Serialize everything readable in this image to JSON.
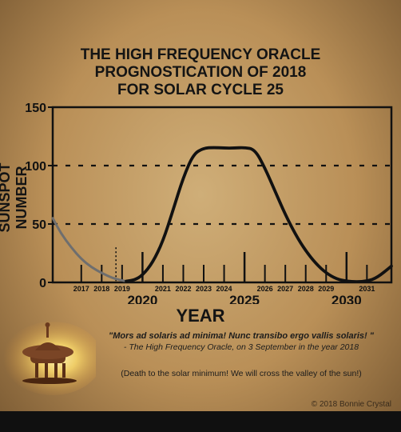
{
  "chart_data": {
    "type": "line",
    "title": [
      "THE HIGH FREQUENCY ORACLE",
      "PROGNOSTICATION OF 2018",
      "FOR SOLAR CYCLE 25"
    ],
    "xlabel": "YEAR",
    "ylabel": "SUNSPOT NUMBER",
    "xlim": [
      2015.6,
      2032.2
    ],
    "ylim": [
      0,
      150
    ],
    "y_ticks": [
      0,
      50,
      100,
      150
    ],
    "x_major_ticks": [
      2020,
      2025,
      2030
    ],
    "x_minor_ticks": [
      2017,
      2018,
      2019,
      2021,
      2022,
      2023,
      2024,
      2026,
      2027,
      2028,
      2029,
      2031
    ],
    "gridlines_y": [
      50,
      100
    ],
    "grid_style": "dashed",
    "marker_line_x": 2018.7,
    "series": [
      {
        "role": "observed",
        "color": "#6e6e6e",
        "points": [
          [
            2015.6,
            55
          ],
          [
            2016,
            42
          ],
          [
            2016.5,
            30
          ],
          [
            2017,
            20
          ],
          [
            2017.5,
            13
          ],
          [
            2018,
            8
          ],
          [
            2018.5,
            4
          ],
          [
            2018.9,
            2
          ],
          [
            2019.2,
            1
          ]
        ]
      },
      {
        "role": "prediction",
        "color": "#111111",
        "points": [
          [
            2019.2,
            1
          ],
          [
            2019.6,
            2
          ],
          [
            2020,
            6
          ],
          [
            2020.5,
            17
          ],
          [
            2021,
            35
          ],
          [
            2021.5,
            62
          ],
          [
            2022,
            90
          ],
          [
            2022.5,
            110
          ],
          [
            2023,
            115
          ],
          [
            2023.5,
            115.5
          ],
          [
            2024,
            115
          ],
          [
            2024.5,
            115
          ],
          [
            2025,
            115.5
          ],
          [
            2025.5,
            114
          ],
          [
            2026,
            98
          ],
          [
            2026.5,
            78
          ],
          [
            2027,
            58
          ],
          [
            2027.5,
            41
          ],
          [
            2028,
            27
          ],
          [
            2028.5,
            16
          ],
          [
            2029,
            8
          ],
          [
            2029.5,
            3
          ],
          [
            2030,
            1
          ],
          [
            2030.5,
            0.5
          ],
          [
            2031,
            1
          ],
          [
            2031.5,
            4
          ],
          [
            2032.2,
            14
          ]
        ]
      }
    ]
  },
  "quote": {
    "latin": "\"Mors ad solaris ad minima! Nunc transibo ergo vallis solaris! \"",
    "attribution": "- The High Frequency Oracle, on 3 September in the year 2018",
    "translation": "(Death to the solar minimum! We will cross the valley of the sun!)"
  },
  "copyright": "© 2018 Bonnie Crystal",
  "colors": {
    "background": "#c3a06a",
    "axis": "#111111",
    "prediction_line": "#111111",
    "observed_line": "#6e6e6e",
    "glow": "#f6d56a"
  },
  "decoration": "sun-temple-icon"
}
